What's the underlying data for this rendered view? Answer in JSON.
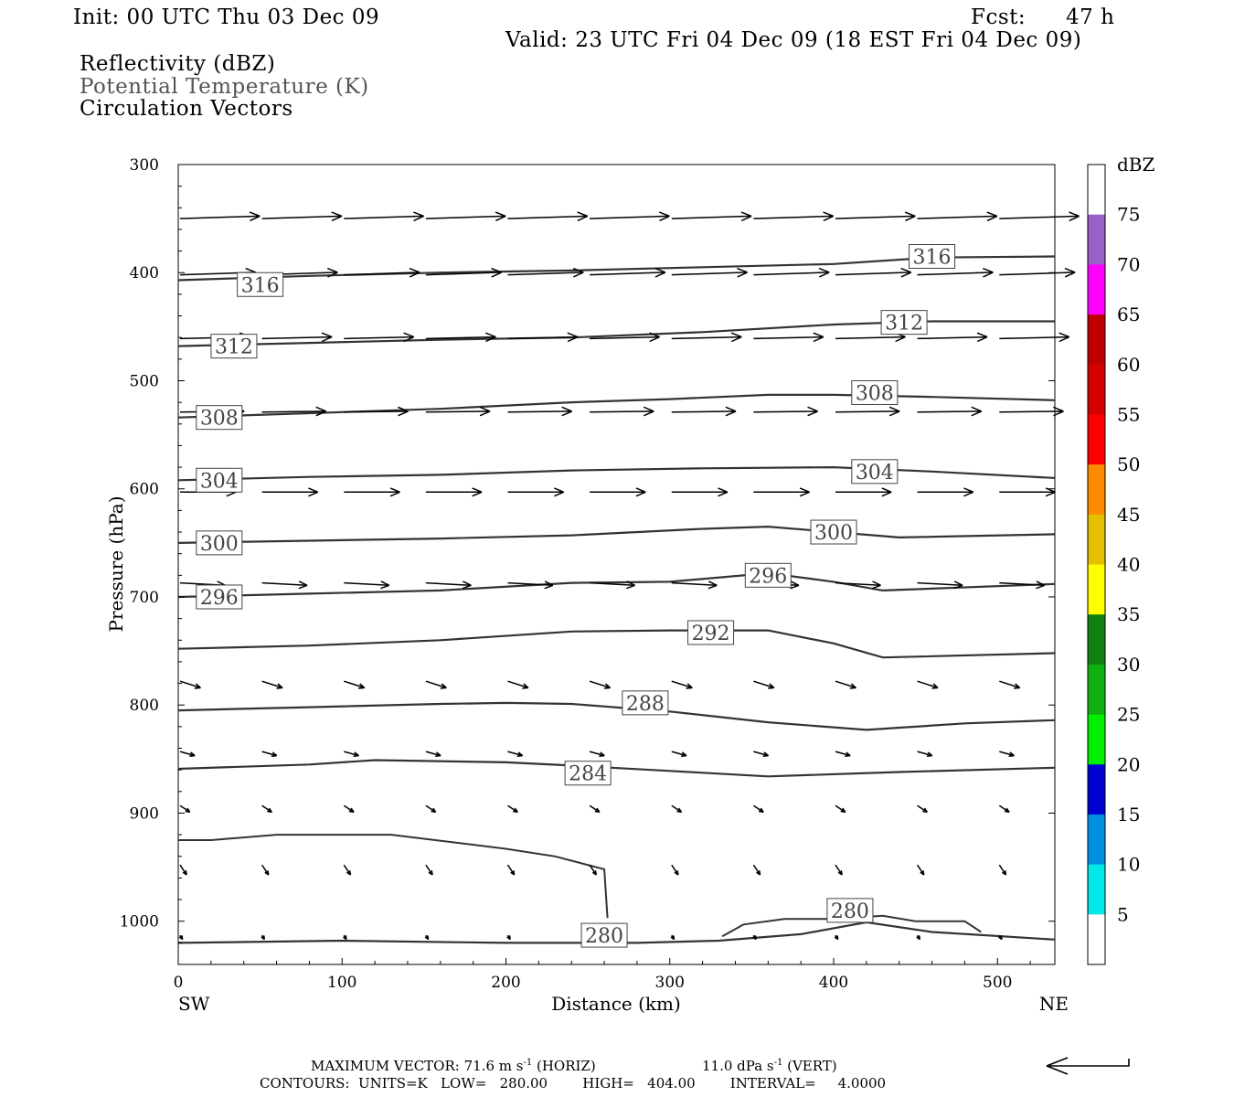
{
  "header": {
    "init": "Init: 00 UTC Thu 03 Dec 09",
    "fcst_label": "Fcst:",
    "fcst_value": "47 h",
    "valid": "Valid: 23 UTC Fri 04 Dec 09 (18 EST Fri 04 Dec 09)",
    "fields": [
      {
        "text": "Reflectivity (dBZ)",
        "color": "#000000"
      },
      {
        "text": "Potential Temperature (K)",
        "color": "#555555"
      },
      {
        "text": "Circulation Vectors",
        "color": "#000000"
      }
    ]
  },
  "chart_data": {
    "type": "cross-section (contour + vector)",
    "xlabel": "Distance (km)",
    "ylabel": "Pressure (hPa)",
    "x_range": [
      0,
      535
    ],
    "y_range_hPa": [
      300,
      1040
    ],
    "y_axis_inverted": true,
    "x_ticks": [
      0,
      100,
      200,
      300,
      400,
      500
    ],
    "y_ticks": [
      300,
      400,
      500,
      600,
      700,
      800,
      900,
      1000
    ],
    "left_end_label": "SW",
    "right_end_label": "NE",
    "contour_units": "K",
    "contours": [
      {
        "level": 316,
        "labels": [
          [
            50,
            411
          ],
          [
            460,
            385
          ]
        ],
        "points": [
          [
            0,
            407
          ],
          [
            80,
            403
          ],
          [
            160,
            400
          ],
          [
            240,
            398
          ],
          [
            320,
            395
          ],
          [
            400,
            392
          ],
          [
            460,
            386
          ],
          [
            535,
            385
          ]
        ]
      },
      {
        "level": 312,
        "labels": [
          [
            34,
            468
          ],
          [
            443,
            446
          ]
        ],
        "points": [
          [
            0,
            468
          ],
          [
            80,
            465
          ],
          [
            160,
            462
          ],
          [
            240,
            460
          ],
          [
            320,
            455
          ],
          [
            400,
            448
          ],
          [
            460,
            445
          ],
          [
            535,
            445
          ]
        ]
      },
      {
        "level": 308,
        "labels": [
          [
            25,
            534
          ],
          [
            425,
            511
          ]
        ],
        "points": [
          [
            0,
            534
          ],
          [
            80,
            530
          ],
          [
            160,
            526
          ],
          [
            240,
            520
          ],
          [
            300,
            517
          ],
          [
            360,
            513
          ],
          [
            400,
            513
          ],
          [
            460,
            515
          ],
          [
            535,
            518
          ]
        ]
      },
      {
        "level": 304,
        "labels": [
          [
            25,
            592
          ],
          [
            425,
            584
          ]
        ],
        "points": [
          [
            0,
            592
          ],
          [
            80,
            589
          ],
          [
            160,
            587
          ],
          [
            240,
            583
          ],
          [
            320,
            581
          ],
          [
            400,
            580
          ],
          [
            460,
            584
          ],
          [
            535,
            590
          ]
        ]
      },
      {
        "level": 300,
        "labels": [
          [
            25,
            650
          ],
          [
            400,
            640
          ]
        ],
        "points": [
          [
            0,
            650
          ],
          [
            80,
            648
          ],
          [
            160,
            646
          ],
          [
            240,
            643
          ],
          [
            320,
            637
          ],
          [
            360,
            635
          ],
          [
            400,
            640
          ],
          [
            440,
            645
          ],
          [
            535,
            642
          ]
        ]
      },
      {
        "level": 296,
        "labels": [
          [
            25,
            700
          ],
          [
            360,
            680
          ]
        ],
        "points": [
          [
            0,
            700
          ],
          [
            80,
            697
          ],
          [
            160,
            694
          ],
          [
            240,
            687
          ],
          [
            300,
            686
          ],
          [
            360,
            678
          ],
          [
            400,
            686
          ],
          [
            430,
            694
          ],
          [
            535,
            688
          ]
        ]
      },
      {
        "level": 292,
        "labels": [
          [
            325,
            733
          ]
        ],
        "points": [
          [
            0,
            748
          ],
          [
            80,
            745
          ],
          [
            160,
            740
          ],
          [
            240,
            732
          ],
          [
            300,
            731
          ],
          [
            360,
            731
          ],
          [
            400,
            743
          ],
          [
            430,
            756
          ],
          [
            535,
            752
          ]
        ]
      },
      {
        "level": 288,
        "labels": [
          [
            285,
            798
          ]
        ],
        "points": [
          [
            0,
            805
          ],
          [
            80,
            802
          ],
          [
            160,
            799
          ],
          [
            200,
            798
          ],
          [
            240,
            799
          ],
          [
            300,
            806
          ],
          [
            360,
            816
          ],
          [
            420,
            823
          ],
          [
            480,
            817
          ],
          [
            535,
            814
          ]
        ]
      },
      {
        "level": 284,
        "labels": [
          [
            250,
            863
          ]
        ],
        "points": [
          [
            0,
            859
          ],
          [
            80,
            855
          ],
          [
            120,
            851
          ],
          [
            200,
            853
          ],
          [
            240,
            856
          ],
          [
            300,
            861
          ],
          [
            360,
            866
          ],
          [
            440,
            862
          ],
          [
            535,
            858
          ]
        ]
      },
      {
        "level": 280,
        "labels": [
          [
            260,
            1013
          ],
          [
            410,
            990
          ]
        ],
        "points": [
          [
            0,
            1020
          ],
          [
            100,
            1018
          ],
          [
            200,
            1020
          ],
          [
            280,
            1020
          ],
          [
            330,
            1018
          ],
          [
            380,
            1012
          ],
          [
            420,
            1001
          ],
          [
            460,
            1010
          ],
          [
            535,
            1017
          ]
        ]
      }
    ],
    "extra_contour_note": "unlabelled near-surface contour around 920-1000 hPa (0-260 km)",
    "vector_rows_hPa": [
      350,
      402,
      461,
      529,
      603,
      687,
      778,
      843,
      893,
      948,
      1013
    ],
    "colorbar": {
      "title": "dBZ",
      "labels": [
        75,
        70,
        65,
        60,
        55,
        50,
        45,
        40,
        35,
        30,
        25,
        20,
        15,
        10,
        5
      ],
      "colors": [
        "#ffffff",
        "#9a60c8",
        "#ff00ff",
        "#c00000",
        "#d40000",
        "#ff0000",
        "#ff8c00",
        "#e6c000",
        "#ffff00",
        "#108010",
        "#10b010",
        "#00f000",
        "#0000d0",
        "#0090e0",
        "#00e8e8",
        "#ffffff"
      ]
    }
  },
  "footer": {
    "line1_a": "MAXIMUM VECTOR:  71.6 m s",
    "line1_exp": "-1",
    "line1_b": " (HORIZ)",
    "line1_c": "11.0 dPa s",
    "line1_exp2": "-1",
    "line1_d": " (VERT)",
    "line2": "CONTOURS:  UNITS=K   LOW=   280.00        HIGH=   404.00        INTERVAL=     4.0000"
  }
}
